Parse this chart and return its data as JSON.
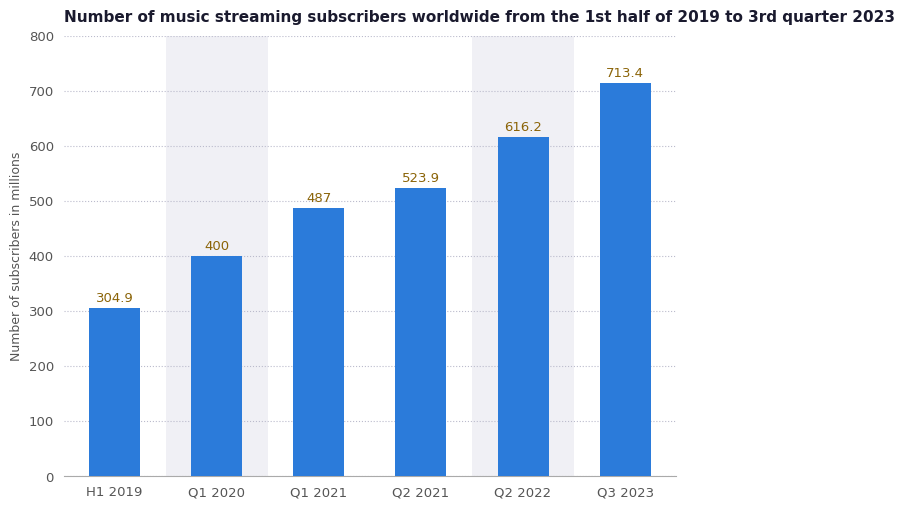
{
  "title": "Number of music streaming subscribers worldwide from the 1st half of 2019 to 3rd quarter 2023",
  "categories": [
    "H1 2019",
    "Q1 2020",
    "Q1 2021",
    "Q2 2021",
    "Q2 2022",
    "Q3 2023"
  ],
  "values": [
    304.9,
    400,
    487,
    523.9,
    616.2,
    713.4
  ],
  "bar_color": "#2b7bda",
  "label_color": "#8B6408",
  "ylabel": "Number of subscribers in millions",
  "ylim": [
    0,
    800
  ],
  "yticks": [
    0,
    100,
    200,
    300,
    400,
    500,
    600,
    700,
    800
  ],
  "title_fontsize": 11,
  "label_fontsize": 9.5,
  "axis_label_fontsize": 9,
  "tick_fontsize": 9.5,
  "background_color": "#ffffff",
  "plot_bg_color": "#ffffff",
  "col_bg_colors": [
    "#ffffff",
    "#f0f0f5",
    "#ffffff",
    "#ffffff",
    "#f0f0f5",
    "#ffffff"
  ],
  "grid_color": "#bbbbcc",
  "bar_width": 0.5
}
